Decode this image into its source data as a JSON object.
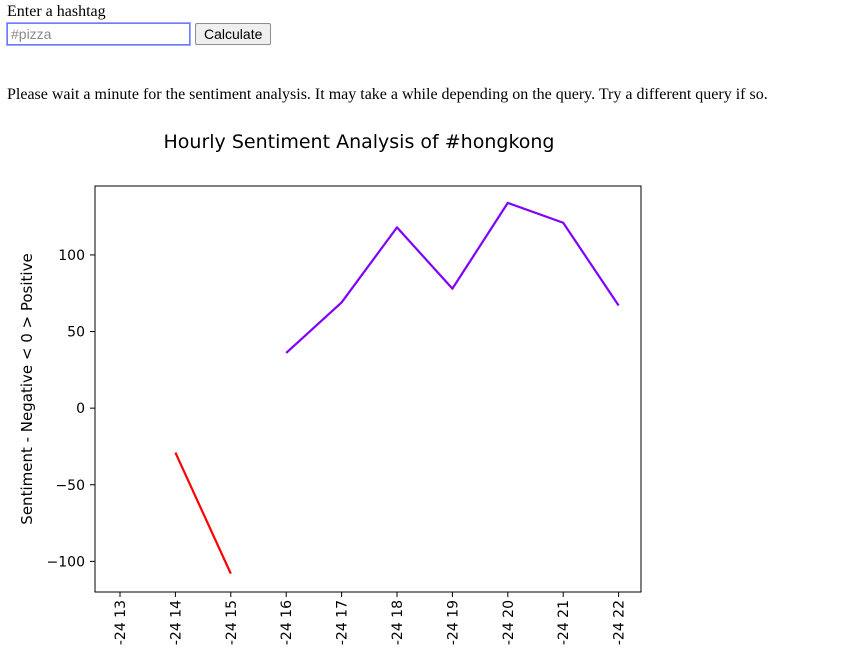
{
  "form": {
    "label": "Enter a hashtag",
    "input_value": "",
    "input_placeholder": "#pizza",
    "button_label": "Calculate"
  },
  "message": "Please wait a minute for the sentiment analysis. It may take a while depending on the query. Try a different query if so.",
  "chart_data": {
    "type": "line",
    "title": "Hourly Sentiment Analysis of #hongkong",
    "xlabel": "",
    "ylabel": "Sentiment - Negative < 0 > Positive",
    "categories": [
      "-24 13",
      "-24 14",
      "-24 15",
      "-24 16",
      "-24 17",
      "-24 18",
      "-24 19",
      "-24 20",
      "-24 21",
      "-24 22"
    ],
    "ylim": [
      -120,
      145
    ],
    "yticks": [
      -100,
      -50,
      0,
      50,
      100
    ],
    "ytick_labels": [
      "−100",
      "−50",
      "0",
      "50",
      "100"
    ],
    "grid": false,
    "series": [
      {
        "color": "#ff0000",
        "points": [
          {
            "x": "-24 14",
            "y": -29
          },
          {
            "x": "-24 15",
            "y": -108
          }
        ]
      },
      {
        "color": "#7f00ff",
        "points": [
          {
            "x": "-24 16",
            "y": 36
          },
          {
            "x": "-24 17",
            "y": 69
          },
          {
            "x": "-24 18",
            "y": 118
          },
          {
            "x": "-24 19",
            "y": 78
          },
          {
            "x": "-24 20",
            "y": 134
          },
          {
            "x": "-24 21",
            "y": 121
          },
          {
            "x": "-24 22",
            "y": 67
          }
        ]
      }
    ]
  }
}
